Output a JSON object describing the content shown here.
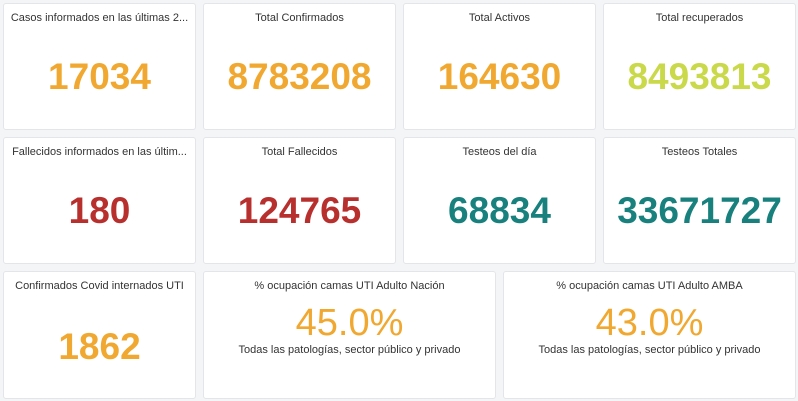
{
  "colors": {
    "orange": "#f0a830",
    "green": "#c9d94a",
    "red": "#b8302e",
    "teal": "#18807d"
  },
  "cards": [
    {
      "title": "Casos informados en las últimas 2...",
      "value": "17034",
      "color": "#f0a830"
    },
    {
      "title": "Total Confirmados",
      "value": "8783208",
      "color": "#f0a830"
    },
    {
      "title": "Total Activos",
      "value": "164630",
      "color": "#f0a830"
    },
    {
      "title": "Total recuperados",
      "value": "8493813",
      "color": "#c9d94a"
    },
    {
      "title": "Fallecidos informados en las últim...",
      "value": "180",
      "color": "#b8302e"
    },
    {
      "title": "Total Fallecidos",
      "value": "124765",
      "color": "#b8302e"
    },
    {
      "title": "Testeos del día",
      "value": "68834",
      "color": "#18807d"
    },
    {
      "title": "Testeos Totales",
      "value": "33671727",
      "color": "#18807d"
    },
    {
      "title": "Confirmados Covid internados UTI",
      "value": "1862",
      "color": "#f0a830"
    },
    {
      "title": "% ocupación camas UTI Adulto Nación",
      "value": "45.0%",
      "subtitle": "Todas las patologías, sector público y privado",
      "color": "#f0a830"
    },
    {
      "title": "% ocupación camas UTI Adulto AMBA",
      "value": "43.0%",
      "subtitle": "Todas las patologías, sector público y privado",
      "color": "#f0a830"
    }
  ]
}
